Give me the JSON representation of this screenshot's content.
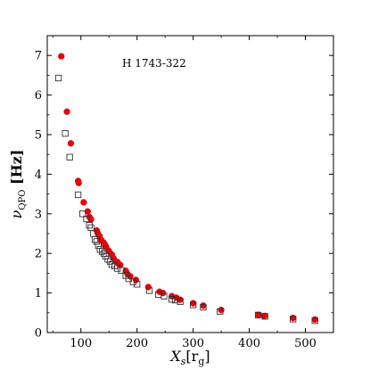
{
  "chart_data": {
    "type": "scatter",
    "title": "",
    "annotation": "H 1743-322",
    "xlabel": "X_s[r_g]",
    "ylabel": "ν_QPO [Hz]",
    "xlim": [
      40,
      550
    ],
    "ylim": [
      0,
      7.5
    ],
    "xticks": [
      100,
      200,
      300,
      400,
      500
    ],
    "yticks": [
      0,
      1,
      2,
      3,
      4,
      5,
      6,
      7
    ],
    "grid": false,
    "legend": "none",
    "series": [
      {
        "marker": "filled-circle",
        "color": "#e8000b",
        "x": [
          65,
          75,
          82,
          95,
          96,
          105,
          112,
          115,
          118,
          128,
          130,
          133,
          136,
          140,
          143,
          145,
          150,
          155,
          158,
          162,
          165,
          170,
          180,
          183,
          188,
          198,
          220,
          240,
          246,
          262,
          270,
          277,
          300,
          318,
          350,
          416,
          427,
          478,
          517
        ],
        "y": [
          6.98,
          5.58,
          4.78,
          3.83,
          3.78,
          3.29,
          3.06,
          2.92,
          2.86,
          2.58,
          2.51,
          2.44,
          2.34,
          2.28,
          2.22,
          2.16,
          2.06,
          1.97,
          1.88,
          1.8,
          1.78,
          1.71,
          1.56,
          1.48,
          1.42,
          1.33,
          1.15,
          1.03,
          1.0,
          0.92,
          0.88,
          0.83,
          0.74,
          0.68,
          0.57,
          0.45,
          0.42,
          0.37,
          0.33
        ]
      },
      {
        "marker": "open-square",
        "color": "#333333",
        "x": [
          60,
          72,
          80,
          95,
          103,
          110,
          115,
          118,
          122,
          125,
          128,
          131,
          134,
          138,
          141,
          144,
          148,
          152,
          155,
          160,
          165,
          172,
          180,
          185,
          193,
          200,
          222,
          238,
          248,
          262,
          268,
          277,
          300,
          318,
          348,
          416,
          428,
          478,
          517
        ],
        "y": [
          6.43,
          5.03,
          4.43,
          3.48,
          3.0,
          2.87,
          2.71,
          2.65,
          2.5,
          2.35,
          2.3,
          2.2,
          2.1,
          2.05,
          2.0,
          1.93,
          1.85,
          1.8,
          1.72,
          1.68,
          1.62,
          1.57,
          1.44,
          1.36,
          1.28,
          1.22,
          1.06,
          0.96,
          0.92,
          0.84,
          0.82,
          0.78,
          0.7,
          0.64,
          0.53,
          0.44,
          0.41,
          0.34,
          0.3
        ]
      }
    ]
  }
}
